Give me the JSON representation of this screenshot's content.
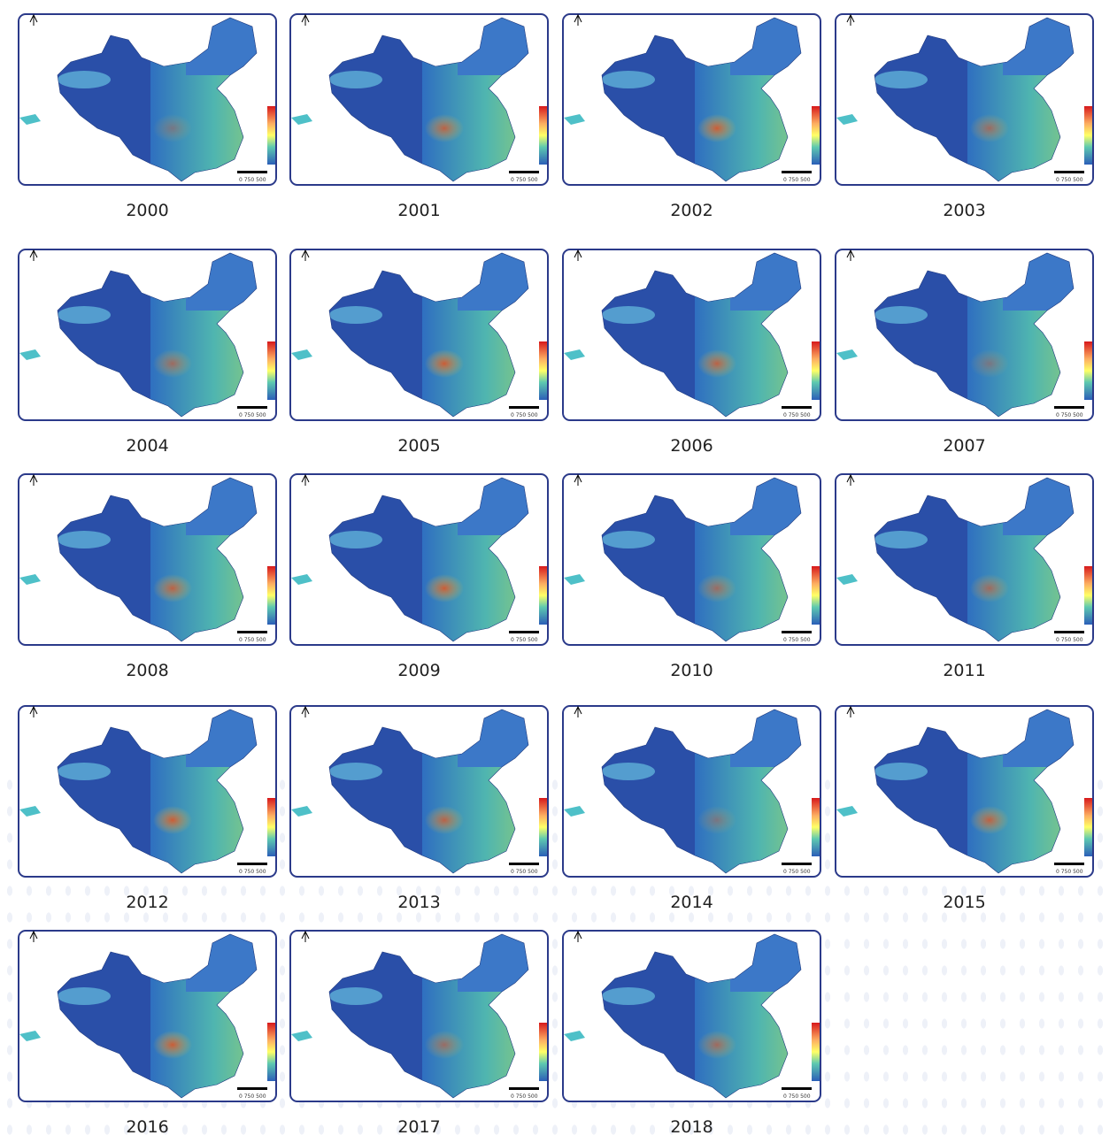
{
  "panels": [
    {
      "year": "2000"
    },
    {
      "year": "2001"
    },
    {
      "year": "2002"
    },
    {
      "year": "2003"
    },
    {
      "year": "2004"
    },
    {
      "year": "2005"
    },
    {
      "year": "2006"
    },
    {
      "year": "2007"
    },
    {
      "year": "2008"
    },
    {
      "year": "2009"
    },
    {
      "year": "2010"
    },
    {
      "year": "2011"
    },
    {
      "year": "2012"
    },
    {
      "year": "2013"
    },
    {
      "year": "2014"
    },
    {
      "year": "2015"
    },
    {
      "year": "2016"
    },
    {
      "year": "2017"
    },
    {
      "year": "2018"
    }
  ],
  "scale_label": "0 750 500"
}
